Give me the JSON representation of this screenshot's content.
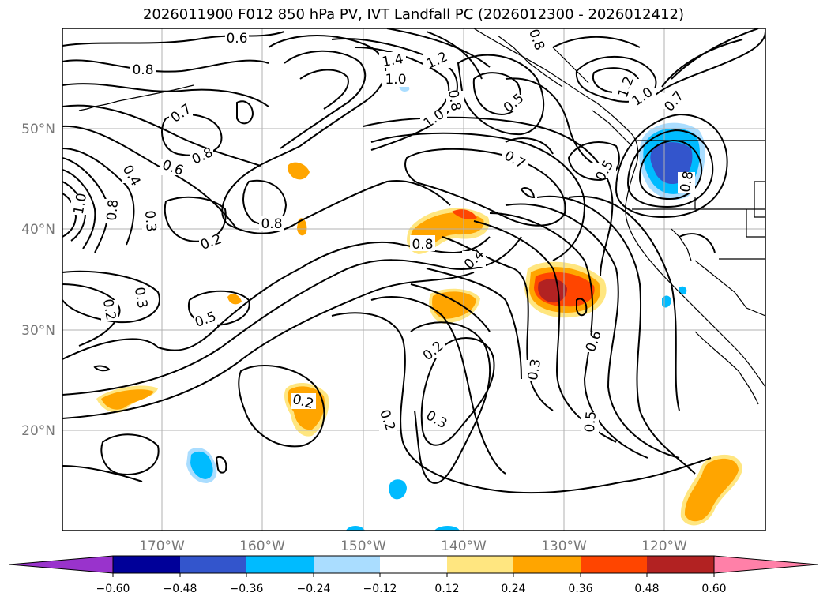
{
  "title": "2026011900 F012 850 hPa PV, IVT Landfall PC (2026012300 - 2026012412)",
  "latitude_labels": [
    "50°N",
    "40°N",
    "30°N",
    "20°N"
  ],
  "longitude_labels": [
    "170°W",
    "160°W",
    "150°W",
    "140°W",
    "130°W",
    "120°W"
  ],
  "colorbar": {
    "ticks": [
      "−0.60",
      "−0.48",
      "−0.36",
      "−0.24",
      "−0.12",
      "0.12",
      "0.24",
      "0.36",
      "0.48",
      "0.60"
    ],
    "colors": [
      "#9933cc",
      "#000099",
      "#3355cc",
      "#00bbff",
      "#aaddff",
      "#ffffff",
      "#ffe680",
      "#ffa500",
      "#ff4500",
      "#b22222",
      "#ff80a8"
    ]
  },
  "contour_labels": [
    {
      "text": "0.6"
    },
    {
      "text": "0.8"
    },
    {
      "text": "0.7"
    },
    {
      "text": "0.8"
    },
    {
      "text": "0.6"
    },
    {
      "text": "0.4"
    },
    {
      "text": "1.0"
    },
    {
      "text": "0.8"
    },
    {
      "text": "0.3"
    },
    {
      "text": "0.2"
    },
    {
      "text": "0.8"
    },
    {
      "text": "0.3"
    },
    {
      "text": "0.2"
    },
    {
      "text": "0.5"
    },
    {
      "text": "1.4"
    },
    {
      "text": "1.2"
    },
    {
      "text": "1.0"
    },
    {
      "text": "1.0"
    },
    {
      "text": "0.8"
    },
    {
      "text": "0.8"
    },
    {
      "text": "0.5"
    },
    {
      "text": "0.7"
    },
    {
      "text": "0.5"
    },
    {
      "text": "1.2"
    },
    {
      "text": "1.0"
    },
    {
      "text": "0.7"
    },
    {
      "text": "0.8"
    },
    {
      "text": "0.8"
    },
    {
      "text": "0.4"
    },
    {
      "text": "0.2"
    },
    {
      "text": "0.3"
    },
    {
      "text": "0.6"
    },
    {
      "text": "0.5"
    },
    {
      "text": "0.3"
    },
    {
      "text": "0.2"
    },
    {
      "text": "0.2"
    }
  ]
}
